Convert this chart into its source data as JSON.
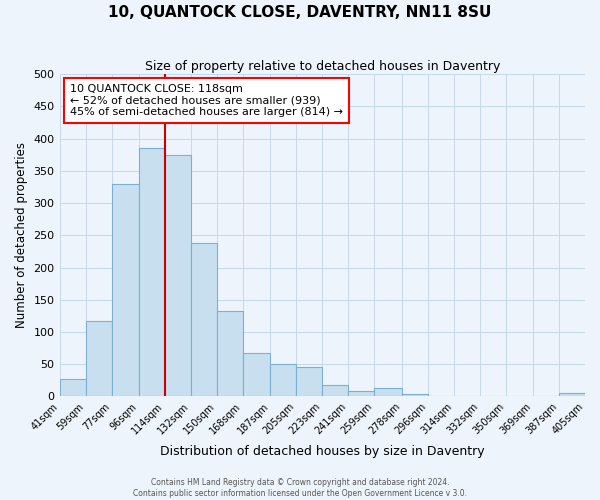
{
  "title": "10, QUANTOCK CLOSE, DAVENTRY, NN11 8SU",
  "subtitle": "Size of property relative to detached houses in Daventry",
  "xlabel": "Distribution of detached houses by size in Daventry",
  "ylabel": "Number of detached properties",
  "footer_line1": "Contains HM Land Registry data © Crown copyright and database right 2024.",
  "footer_line2": "Contains public sector information licensed under the Open Government Licence v 3.0.",
  "bin_labels": [
    "41sqm",
    "59sqm",
    "77sqm",
    "96sqm",
    "114sqm",
    "132sqm",
    "150sqm",
    "168sqm",
    "187sqm",
    "205sqm",
    "223sqm",
    "241sqm",
    "259sqm",
    "278sqm",
    "296sqm",
    "314sqm",
    "332sqm",
    "350sqm",
    "369sqm",
    "387sqm",
    "405sqm"
  ],
  "bin_edges": [
    41,
    59,
    77,
    96,
    114,
    132,
    150,
    168,
    187,
    205,
    223,
    241,
    259,
    278,
    296,
    314,
    332,
    350,
    369,
    387,
    405
  ],
  "bar_heights": [
    27,
    117,
    330,
    385,
    375,
    238,
    133,
    68,
    50,
    45,
    17,
    8,
    13,
    3,
    1,
    1,
    0,
    1,
    0,
    5
  ],
  "bar_color": "#c8dff0",
  "bar_edge_color": "#7bafd4",
  "vline_x": 114,
  "vline_color": "#cc0000",
  "ylim": [
    0,
    500
  ],
  "yticks": [
    0,
    50,
    100,
    150,
    200,
    250,
    300,
    350,
    400,
    450,
    500
  ],
  "ann_line1": "10 QUANTOCK CLOSE: 118sqm",
  "ann_line2": "← 52% of detached houses are smaller (939)",
  "ann_line3": "45% of semi-detached houses are larger (814) →",
  "bg_color": "#eef4fb",
  "grid_color": "#c5d8ec"
}
